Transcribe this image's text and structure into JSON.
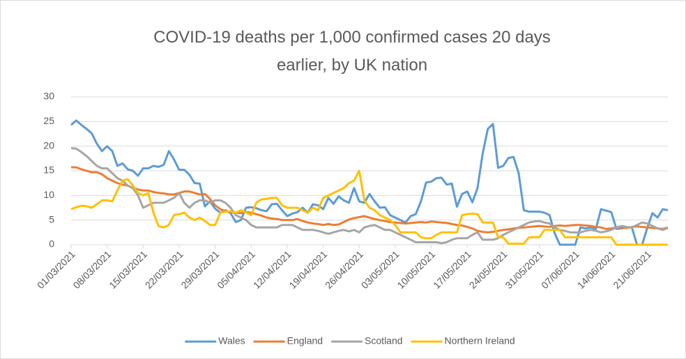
{
  "chart_data": {
    "type": "line",
    "title": "COVID-19 deaths per 1,000 confirmed cases 20 days earlier, by UK nation",
    "categories": [
      "01/03/2021",
      null,
      null,
      null,
      null,
      null,
      null,
      "08/03/2021",
      null,
      null,
      null,
      null,
      null,
      null,
      "15/03/2021",
      null,
      null,
      null,
      null,
      null,
      null,
      "22/03/2021",
      null,
      null,
      null,
      null,
      null,
      null,
      "29/03/2021",
      null,
      null,
      null,
      null,
      null,
      null,
      "05/04/2021",
      null,
      null,
      null,
      null,
      null,
      null,
      "12/04/2021",
      null,
      null,
      null,
      null,
      null,
      null,
      "19/04/2021",
      null,
      null,
      null,
      null,
      null,
      null,
      "26/04/2021",
      null,
      null,
      null,
      null,
      null,
      null,
      "03/05/2021",
      null,
      null,
      null,
      null,
      null,
      null,
      "10/05/2021",
      null,
      null,
      null,
      null,
      null,
      null,
      "17/05/2021",
      null,
      null,
      null,
      null,
      null,
      null,
      "24/05/2021",
      null,
      null,
      null,
      null,
      null,
      null,
      "31/05/2021",
      null,
      null,
      null,
      null,
      null,
      null,
      "07/06/2021",
      null,
      null,
      null,
      null,
      null,
      null,
      "14/06/2021",
      null,
      null,
      null,
      null,
      null,
      null,
      "21/06/2021",
      null,
      null,
      null,
      null
    ],
    "series": [
      {
        "name": "Wales",
        "color": "#5B9BD5",
        "values": [
          24.3,
          25.2,
          24.3,
          23.5,
          22.6,
          20.5,
          19.0,
          20.0,
          19.0,
          16.0,
          16.5,
          15.3,
          15.0,
          14.0,
          15.5,
          15.5,
          16.0,
          15.8,
          16.2,
          19.0,
          17.3,
          15.2,
          15.2,
          14.2,
          12.5,
          12.4,
          7.8,
          8.8,
          7.3,
          6.5,
          7.0,
          6.4,
          4.6,
          5.0,
          7.5,
          7.6,
          7.4,
          7.0,
          6.8,
          8.2,
          8.3,
          7.0,
          5.8,
          6.3,
          6.6,
          7.5,
          6.5,
          8.2,
          8.0,
          7.2,
          9.5,
          8.3,
          9.8,
          9.0,
          8.5,
          11.5,
          8.8,
          8.5,
          10.3,
          8.8,
          7.5,
          7.6,
          6.0,
          5.5,
          5.0,
          4.5,
          5.8,
          6.2,
          8.8,
          12.6,
          12.8,
          13.5,
          13.6,
          12.2,
          12.4,
          7.7,
          10.3,
          10.8,
          8.6,
          11.5,
          18.5,
          23.5,
          24.5,
          15.6,
          16.0,
          17.6,
          17.8,
          14.5,
          7.0,
          6.7,
          6.7,
          6.7,
          6.5,
          6.0,
          2.3,
          0,
          0,
          0,
          0,
          3.5,
          3.3,
          3.5,
          3.2,
          7.2,
          6.9,
          6.6,
          3.2,
          3.3,
          3.5,
          3.5,
          0,
          0,
          3.4,
          6.4,
          5.5,
          7.2,
          7.0
        ]
      },
      {
        "name": "England",
        "color": "#ED7D31",
        "values": [
          15.7,
          15.7,
          15.3,
          15.0,
          14.7,
          14.7,
          14.3,
          13.5,
          13.0,
          12.5,
          12.2,
          12.0,
          11.5,
          11.2,
          11.0,
          11.0,
          10.7,
          10.5,
          10.4,
          10.2,
          10.2,
          10.5,
          10.8,
          10.8,
          10.5,
          10.2,
          10.3,
          9.3,
          8.0,
          7.2,
          6.8,
          6.6,
          6.5,
          6.4,
          6.6,
          6.5,
          6.2,
          5.9,
          5.5,
          5.3,
          5.2,
          5.0,
          5.0,
          5.0,
          5.2,
          4.8,
          4.5,
          4.3,
          4.2,
          4.0,
          4.2,
          4.0,
          4.1,
          4.6,
          5.1,
          5.4,
          5.6,
          5.8,
          5.5,
          5.2,
          5.0,
          4.8,
          4.6,
          4.5,
          4.4,
          4.3,
          4.4,
          4.5,
          4.6,
          4.5,
          4.7,
          4.6,
          4.5,
          4.4,
          4.2,
          4.0,
          3.9,
          3.6,
          3.3,
          2.8,
          2.6,
          2.5,
          2.6,
          2.8,
          3.0,
          3.1,
          3.3,
          3.4,
          3.5,
          3.6,
          3.7,
          3.8,
          3.7,
          3.6,
          3.8,
          3.9,
          3.8,
          3.9,
          4.0,
          4.0,
          3.9,
          3.8,
          3.6,
          3.5,
          3.2,
          3.3,
          3.5,
          3.5,
          3.4,
          3.6,
          3.7,
          3.6,
          3.5,
          3.4,
          3.3,
          3.2,
          3.5
        ]
      },
      {
        "name": "Scotland",
        "color": "#A5A5A5",
        "values": [
          19.6,
          19.5,
          18.8,
          18.0,
          17.0,
          16.0,
          15.5,
          15.5,
          14.5,
          13.5,
          13.0,
          12.0,
          11.5,
          10.0,
          7.5,
          8.0,
          8.5,
          8.5,
          8.5,
          9.0,
          9.5,
          10.5,
          8.5,
          7.5,
          8.5,
          9.0,
          9.0,
          8.5,
          9.0,
          9.0,
          8.5,
          7.5,
          6.0,
          5.5,
          5.0,
          4.0,
          3.5,
          3.5,
          3.5,
          3.5,
          3.5,
          4.0,
          4.0,
          4.0,
          3.5,
          3.0,
          3.0,
          3.0,
          2.8,
          2.5,
          2.2,
          2.5,
          2.8,
          3.0,
          2.7,
          3.0,
          2.5,
          3.5,
          3.8,
          4.0,
          3.5,
          3.0,
          3.0,
          2.5,
          2.0,
          1.5,
          1.0,
          0.5,
          0.5,
          0.5,
          0.5,
          0.5,
          0.3,
          0.5,
          1.0,
          1.3,
          1.3,
          1.3,
          2.0,
          2.5,
          1.0,
          1.0,
          1.0,
          1.3,
          2.0,
          2.5,
          3.0,
          3.5,
          4.0,
          4.5,
          4.7,
          4.8,
          4.5,
          4.3,
          3.5,
          3.0,
          2.8,
          2.5,
          2.5,
          2.5,
          2.8,
          3.0,
          2.8,
          2.5,
          2.7,
          3.0,
          3.5,
          3.8,
          3.6,
          3.5,
          4.0,
          4.5,
          4.3,
          3.8,
          3.3,
          3.0,
          3.4
        ]
      },
      {
        "name": "Northern Ireland",
        "color": "#FFC000",
        "values": [
          7.2,
          7.6,
          7.9,
          7.8,
          7.5,
          8.2,
          9.0,
          9.0,
          8.8,
          11.0,
          13.0,
          13.3,
          12.0,
          10.5,
          10.0,
          10.5,
          6.5,
          3.8,
          3.5,
          4.0,
          6.0,
          6.2,
          6.5,
          5.5,
          5.0,
          5.5,
          4.8,
          4.0,
          4.0,
          6.5,
          6.7,
          6.8,
          6.5,
          7.0,
          6.5,
          6.0,
          8.5,
          9.2,
          9.3,
          9.5,
          9.5,
          8.0,
          7.5,
          7.5,
          7.5,
          7.0,
          6.5,
          7.5,
          7.0,
          9.5,
          10.0,
          10.5,
          11.0,
          11.5,
          12.5,
          13.0,
          15.0,
          9.0,
          7.5,
          7.0,
          6.0,
          5.5,
          5.0,
          4.0,
          2.5,
          2.5,
          2.5,
          2.5,
          1.5,
          1.3,
          1.3,
          2.0,
          2.5,
          2.5,
          2.5,
          2.5,
          6.0,
          6.2,
          6.3,
          6.2,
          4.5,
          4.5,
          4.5,
          1.5,
          1.5,
          0.2,
          0.2,
          0.2,
          0.2,
          1.5,
          1.5,
          1.5,
          3.0,
          3.0,
          3.0,
          3.0,
          1.5,
          1.5,
          1.5,
          1.5,
          1.5,
          1.5,
          1.5,
          1.5,
          1.5,
          1.5,
          0,
          0,
          0,
          0,
          0,
          0,
          0,
          0,
          0,
          0,
          0
        ]
      }
    ],
    "ylim": [
      0,
      30
    ],
    "yticks": [
      0,
      5,
      10,
      15,
      20,
      25,
      30
    ],
    "grid": true,
    "legend": "bottom"
  }
}
